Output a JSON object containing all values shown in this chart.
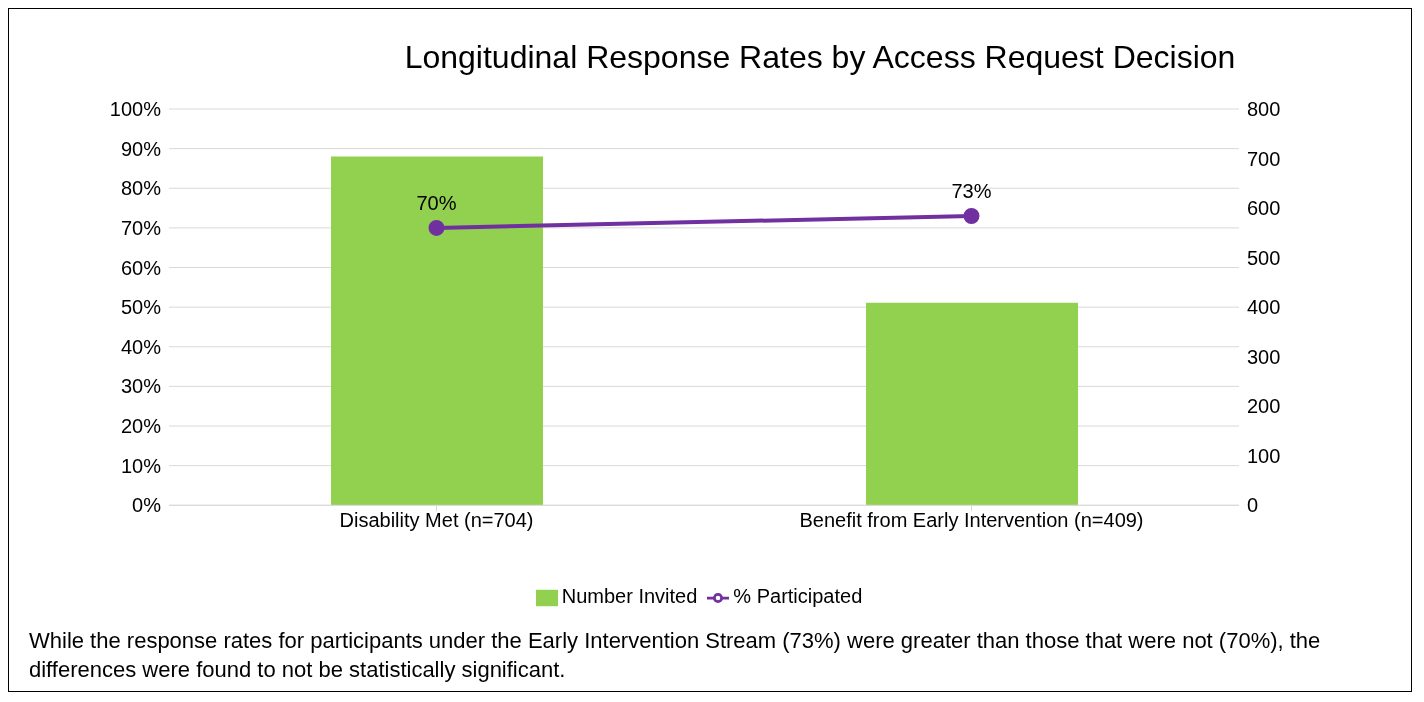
{
  "chart_data": {
    "type": "bar",
    "title": "Longitudinal Response Rates by Access Request Decision",
    "categories": [
      "Disability Met (n=704)",
      "Benefit from Early Intervention (n=409)"
    ],
    "series": [
      {
        "name": "Number Invited",
        "axis": "y2",
        "color": "#92d050",
        "values": [
          704,
          409
        ]
      },
      {
        "name": "% Participated",
        "type": "line",
        "color": "#7030a0",
        "values": [
          70,
          73
        ],
        "value_labels": [
          "70%",
          "73%"
        ]
      }
    ],
    "ylim": [
      0,
      100
    ],
    "yticks": [
      {
        "value": 0,
        "label": "0%"
      },
      {
        "value": 10,
        "label": "10%"
      },
      {
        "value": 20,
        "label": "20%"
      },
      {
        "value": 30,
        "label": "30%"
      },
      {
        "value": 40,
        "label": "40%"
      },
      {
        "value": 50,
        "label": "50%"
      },
      {
        "value": 60,
        "label": "60%"
      },
      {
        "value": 70,
        "label": "70%"
      },
      {
        "value": 80,
        "label": "80%"
      },
      {
        "value": 90,
        "label": "90%"
      },
      {
        "value": 100,
        "label": "100%"
      }
    ],
    "y2lim": [
      0,
      800
    ],
    "y2ticks": [
      0,
      100,
      200,
      300,
      400,
      500,
      600,
      700,
      800
    ],
    "grid": "y",
    "legend": "bottom",
    "marker": "circle",
    "line_style": "solid",
    "annotations": [
      "While the response rates for participants under the Early Intervention Stream (73%) were greater than those that were not (70%), the differences were found to not be statistically significant."
    ]
  }
}
